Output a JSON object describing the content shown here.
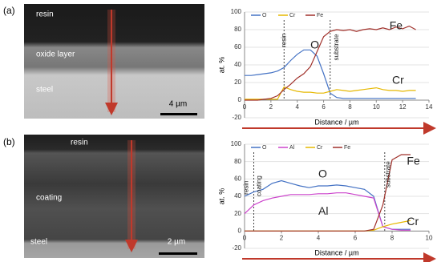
{
  "panels": [
    {
      "tag": "(a)",
      "labels": [
        "resin",
        "oxide layer",
        "steel"
      ],
      "scale": "4 µm"
    },
    {
      "tag": "(b)",
      "labels": [
        "resin",
        "coating",
        "steel"
      ],
      "scale": "2 µm"
    }
  ],
  "chart_data": [
    {
      "type": "line",
      "x_label": "Distance / µm",
      "y_label": "at. %",
      "xlim": [
        0,
        14
      ],
      "xticks": [
        0,
        2,
        4,
        6,
        8,
        10,
        12,
        14
      ],
      "ylim": [
        -20,
        100
      ],
      "yticks": [
        -20,
        0,
        20,
        40,
        60,
        80,
        100
      ],
      "x": [
        0,
        0.5,
        1,
        1.5,
        2,
        2.5,
        3,
        3.5,
        4,
        4.5,
        5,
        5.5,
        6,
        6.5,
        7,
        7.5,
        8,
        8.5,
        9,
        9.5,
        10,
        10.5,
        11,
        11.5,
        12,
        12.5,
        13
      ],
      "series": [
        {
          "name": "O",
          "color": "#4472c4",
          "values": [
            28,
            28,
            29,
            30,
            31,
            33,
            37,
            45,
            52,
            57,
            57,
            50,
            30,
            8,
            3,
            2,
            2,
            2,
            2,
            2,
            2,
            2,
            2,
            2,
            2,
            2,
            2
          ]
        },
        {
          "name": "Cr",
          "color": "#e6b800",
          "values": [
            1,
            1,
            1,
            1,
            1,
            1,
            15,
            12,
            10,
            9,
            9,
            8,
            8,
            10,
            12,
            11,
            10,
            11,
            12,
            13,
            14,
            12,
            11,
            11,
            10,
            11,
            11
          ]
        },
        {
          "name": "Fe",
          "color": "#a0302a",
          "values": [
            0,
            0,
            0,
            1,
            2,
            5,
            12,
            18,
            25,
            30,
            38,
            55,
            72,
            78,
            80,
            79,
            80,
            78,
            80,
            81,
            80,
            82,
            80,
            83,
            81,
            84,
            80
          ]
        }
      ],
      "vlines": [
        3,
        6.5
      ],
      "annotations": [
        "resin",
        "O",
        "substrate",
        "Fe",
        "Cr"
      ]
    },
    {
      "type": "line",
      "x_label": "Distance / µm",
      "y_label": "at. %",
      "xlim": [
        0,
        10
      ],
      "xticks": [
        0,
        2,
        4,
        6,
        8,
        10
      ],
      "ylim": [
        -20,
        100
      ],
      "yticks": [
        -20,
        0,
        20,
        40,
        60,
        80,
        100
      ],
      "x": [
        0,
        0.5,
        1,
        1.5,
        2,
        2.5,
        3,
        3.5,
        4,
        4.5,
        5,
        5.5,
        6,
        6.5,
        7,
        7.5,
        8,
        8.5,
        9
      ],
      "series": [
        {
          "name": "O",
          "color": "#4472c4",
          "values": [
            40,
            45,
            48,
            55,
            58,
            55,
            52,
            50,
            52,
            52,
            53,
            52,
            50,
            48,
            40,
            5,
            2,
            2,
            2
          ]
        },
        {
          "name": "Al",
          "color": "#cc44cc",
          "values": [
            20,
            30,
            35,
            38,
            40,
            42,
            42,
            42,
            43,
            43,
            44,
            44,
            42,
            40,
            38,
            5,
            2,
            1,
            1
          ]
        },
        {
          "name": "Cr",
          "color": "#e6b800",
          "values": [
            0,
            0,
            0,
            0,
            0,
            0,
            0,
            0,
            0,
            0,
            0,
            0,
            0,
            0,
            1,
            5,
            8,
            10,
            12
          ]
        },
        {
          "name": "Fe",
          "color": "#a0302a",
          "values": [
            0,
            0,
            0,
            0,
            0,
            0,
            0,
            0,
            0,
            0,
            0,
            0,
            0,
            0,
            2,
            30,
            82,
            88,
            88
          ]
        }
      ],
      "vlines": [
        0.5,
        7.6
      ],
      "annotations": [
        "resin",
        "coating",
        "O",
        "Al",
        "substrate",
        "Fe",
        "Cr"
      ]
    }
  ]
}
